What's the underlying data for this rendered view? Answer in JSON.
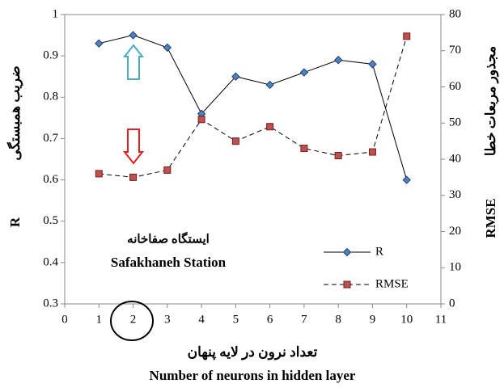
{
  "chart_data": {
    "type": "line",
    "xlabel_fa": "تعداد نرون در لایه پنهان",
    "xlabel": "Number of neurons in hidden layer",
    "ylabel": "R",
    "ylabel_fa": "ضریب همبستگی",
    "y2label": "RMSE",
    "y2label_fa": "مجذور مربعات خطا",
    "annotations": [
      "ایستگاه صفاخانه",
      "Safakhaneh Station"
    ],
    "x": [
      1,
      2,
      3,
      4,
      5,
      6,
      7,
      8,
      9,
      10
    ],
    "xlim": [
      0,
      11
    ],
    "xticks": [
      0,
      1,
      2,
      3,
      4,
      5,
      6,
      7,
      8,
      9,
      10,
      11
    ],
    "ylim": [
      0.3,
      1
    ],
    "yticks": [
      0.3,
      0.4,
      0.5,
      0.6,
      0.7,
      0.8,
      0.9,
      1
    ],
    "y2lim": [
      0,
      80
    ],
    "y2ticks": [
      0,
      10,
      20,
      30,
      40,
      50,
      60,
      70,
      80
    ],
    "series": [
      {
        "name": "R",
        "color": "#4f81bd",
        "values": [
          0.93,
          0.95,
          0.92,
          0.76,
          0.85,
          0.83,
          0.86,
          0.89,
          0.88,
          0.6
        ]
      },
      {
        "name": "RMSE",
        "color": "#c0504d",
        "axis": "y2",
        "values": [
          36,
          35,
          37,
          51,
          45,
          49,
          43,
          41,
          42,
          74
        ]
      }
    ]
  }
}
